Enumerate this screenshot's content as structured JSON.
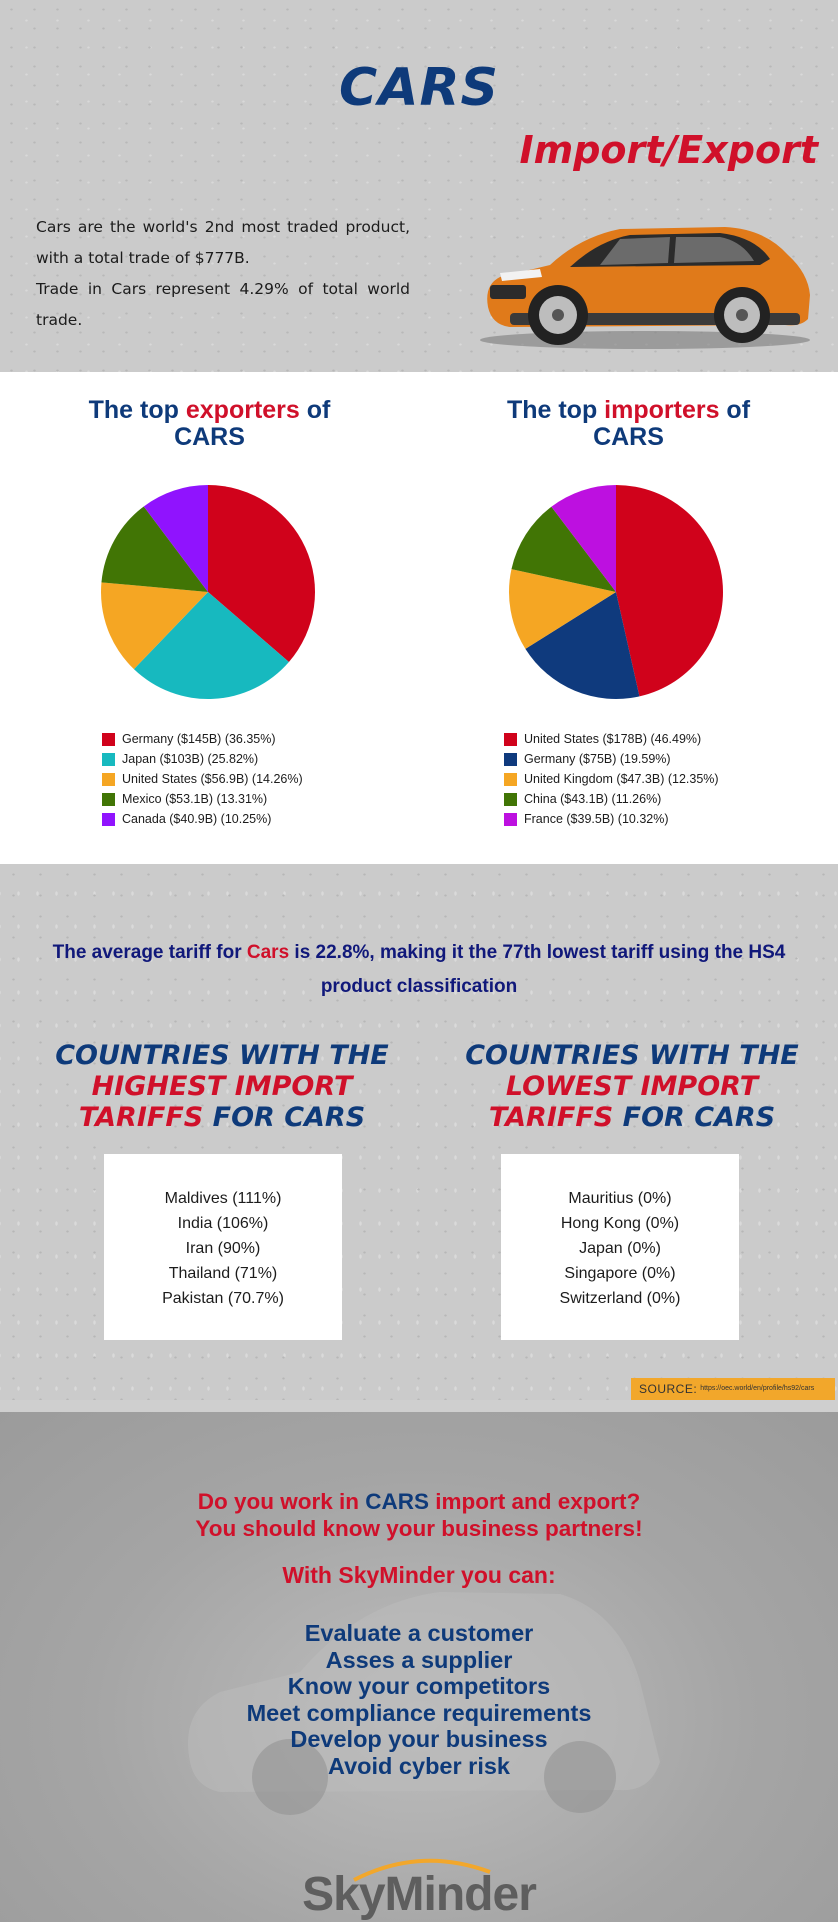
{
  "hero": {
    "title": "CARS",
    "subtitle": "Import/Export",
    "intro_line1": "Cars are the world's 2nd most traded product, with a total trade of $777B.",
    "intro_line2": "Trade in Cars represent 4.29% of total world trade."
  },
  "exporters": {
    "title_pre": "The top ",
    "title_hl": "exporters",
    "title_post": " of",
    "title_line2": "CARS",
    "chart_data": {
      "type": "pie",
      "labels": [
        "Germany ($145B) (36.35%)",
        "Japan ($103B) (25.82%)",
        "United States ($56.9B) (14.26%)",
        "Mexico ($53.1B) (13.31%)",
        "Canada ($40.9B) (10.25%)"
      ],
      "values": [
        36.35,
        25.82,
        14.26,
        13.31,
        10.25
      ],
      "colors": [
        "#d0021b",
        "#17b9bf",
        "#f5a623",
        "#417505",
        "#9013fe"
      ],
      "legend_placement": "bottom"
    }
  },
  "importers": {
    "title_pre": "The top ",
    "title_hl": "importers",
    "title_post": " of",
    "title_line2": "CARS",
    "chart_data": {
      "type": "pie",
      "labels": [
        "United States ($178B) (46.49%)",
        "Germany ($75B) (19.59%)",
        "United Kingdom ($47.3B) (12.35%)",
        "China ($43.1B) (11.26%)",
        "France ($39.5B) (10.32%)"
      ],
      "values": [
        46.49,
        19.59,
        12.35,
        11.26,
        10.32
      ],
      "colors": [
        "#d0021b",
        "#0f3a7d",
        "#f5a623",
        "#417505",
        "#bd10e0"
      ],
      "legend_placement": "bottom"
    }
  },
  "tariff": {
    "avg_pre": "The average tariff for ",
    "avg_hl": "Cars",
    "avg_post": " is 22.8%, making it the 77th lowest tariff using the HS4 product classification",
    "high_l1": "COUNTRIES WITH THE",
    "high_l2": "HIGHEST IMPORT",
    "high_l3a": "TARIFFS",
    "high_l3b": " FOR CARS",
    "high_list": [
      "Maldives (111%)",
      "India (106%)",
      "Iran (90%)",
      "Thailand (71%)",
      "Pakistan (70.7%)"
    ],
    "low_l1": "COUNTRIES WITH THE",
    "low_l2": "LOWEST IMPORT",
    "low_l3a": "TARIFFS",
    "low_l3b": " FOR CARS",
    "low_list": [
      "Mauritius (0%)",
      "Hong Kong (0%)",
      "Japan (0%)",
      "Singapore (0%)",
      "Switzerland (0%)"
    ],
    "source_label": "SOURCE:",
    "source_url": "https://oec.world/en/profile/hs92/cars"
  },
  "cta": {
    "q_pre": "Do you work in ",
    "q_hl": "CARS",
    "q_post": "  import and export?",
    "q_line2": "You should know your business partners!",
    "with": "With SkyMinder you can:",
    "benefits": [
      "Evaluate a customer",
      "Asses a supplier",
      "Know your competitors",
      "Meet compliance requirements",
      "Develop your business",
      "Avoid cyber risk"
    ],
    "logo": "SkyMinder"
  }
}
